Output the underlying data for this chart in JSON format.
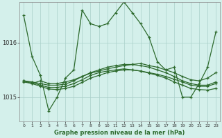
{
  "title": "Graphe pression niveau de la mer (hPa)",
  "bg_color": "#d4f0eb",
  "line_color": "#2d6a2d",
  "grid_color": "#aacfc9",
  "ylim": [
    1014.55,
    1016.75
  ],
  "xlim": [
    -0.5,
    23.5
  ],
  "yticks": [
    1015,
    1016
  ],
  "xticks": [
    0,
    1,
    2,
    3,
    4,
    5,
    6,
    7,
    8,
    9,
    10,
    11,
    12,
    13,
    14,
    15,
    16,
    17,
    18,
    19,
    20,
    21,
    22,
    23
  ],
  "series": [
    [
      1016.5,
      1015.75,
      1015.4,
      1014.75,
      1015.0,
      1015.35,
      1015.5,
      1016.6,
      1016.35,
      1016.3,
      1016.35,
      1016.55,
      1016.75,
      1016.55,
      1016.35,
      1016.1,
      1015.65,
      1015.5,
      1015.55,
      1015.0,
      1015.0,
      1015.25,
      1015.55,
      1016.2
    ],
    [
      1015.3,
      1015.25,
      1015.3,
      1015.25,
      1015.25,
      1015.28,
      1015.32,
      1015.38,
      1015.44,
      1015.48,
      1015.52,
      1015.55,
      1015.58,
      1015.6,
      1015.62,
      1015.58,
      1015.55,
      1015.5,
      1015.45,
      1015.38,
      1015.32,
      1015.3,
      1015.35,
      1015.45
    ],
    [
      1015.3,
      1015.27,
      1015.22,
      1015.18,
      1015.18,
      1015.2,
      1015.25,
      1015.32,
      1015.4,
      1015.45,
      1015.48,
      1015.5,
      1015.52,
      1015.5,
      1015.48,
      1015.45,
      1015.42,
      1015.38,
      1015.33,
      1015.28,
      1015.22,
      1015.2,
      1015.2,
      1015.25
    ],
    [
      1015.28,
      1015.25,
      1015.2,
      1015.15,
      1015.14,
      1015.16,
      1015.2,
      1015.27,
      1015.35,
      1015.4,
      1015.45,
      1015.48,
      1015.5,
      1015.5,
      1015.48,
      1015.44,
      1015.4,
      1015.35,
      1015.28,
      1015.22,
      1015.16,
      1015.14,
      1015.13,
      1015.16
    ],
    [
      1015.3,
      1015.28,
      1015.25,
      1015.22,
      1015.22,
      1015.24,
      1015.3,
      1015.38,
      1015.45,
      1015.5,
      1015.55,
      1015.58,
      1015.6,
      1015.6,
      1015.58,
      1015.55,
      1015.5,
      1015.45,
      1015.38,
      1015.3,
      1015.25,
      1015.22,
      1015.22,
      1015.28
    ]
  ]
}
